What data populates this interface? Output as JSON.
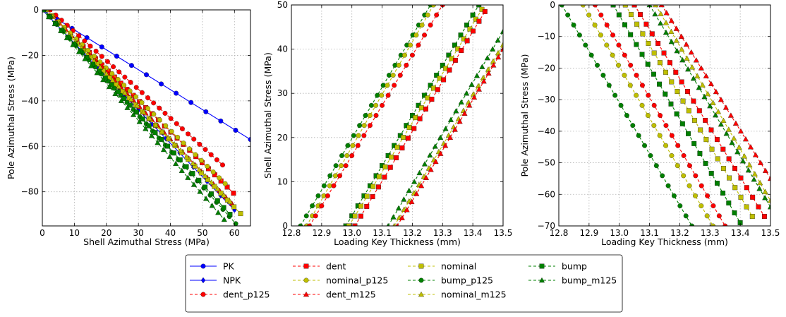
{
  "chart_data": [
    {
      "type": "line",
      "xlabel": "Shell Azimuthal Stress (MPa)",
      "ylabel": "Pole Azimuthal Stress (MPa)",
      "xlim": [
        0,
        65
      ],
      "ylim": [
        -95,
        0
      ],
      "xticks": [
        0,
        10,
        20,
        30,
        40,
        50,
        60
      ],
      "yticks": [
        0,
        -20,
        -40,
        -60,
        -80
      ],
      "grid": true,
      "series": [
        {
          "name": "PK",
          "x": [
            0,
            65
          ],
          "y": [
            0,
            -57
          ]
        },
        {
          "name": "NPK",
          "x": [
            0,
            60
          ],
          "y": [
            0,
            -88
          ]
        },
        {
          "name": "dent_p125",
          "x": [
            2.4,
            56.3
          ],
          "y": [
            0,
            -68.2
          ]
        },
        {
          "name": "dent",
          "x": [
            1,
            59.7
          ],
          "y": [
            0,
            -80.6
          ]
        },
        {
          "name": "dent_m125",
          "x": [
            1.5,
            59.2
          ],
          "y": [
            0,
            -85.1
          ]
        },
        {
          "name": "nominal_p125",
          "x": [
            1.3,
            57.1
          ],
          "y": [
            0,
            -76.4
          ]
        },
        {
          "name": "nominal",
          "x": [
            0.6,
            61.9
          ],
          "y": [
            0,
            -89.6
          ]
        },
        {
          "name": "nominal_m125",
          "x": [
            0.7,
            58.6
          ],
          "y": [
            0,
            -84.3
          ]
        },
        {
          "name": "bump_p125",
          "x": [
            0.5,
            60.4
          ],
          "y": [
            0,
            -94
          ]
        },
        {
          "name": "bump",
          "x": [
            0.2,
            58.6
          ],
          "y": [
            0,
            -89.9
          ]
        },
        {
          "name": "bump_m125",
          "x": [
            0.1,
            56.8
          ],
          "y": [
            0,
            -92.2
          ]
        }
      ]
    },
    {
      "type": "line",
      "xlabel": "Loading Key Thickness (mm)",
      "ylabel": "Shell Azimuthal Stress (MPa)",
      "xlim": [
        12.8,
        13.5
      ],
      "ylim": [
        0,
        50
      ],
      "xticks": [
        12.8,
        12.9,
        13.0,
        13.1,
        13.2,
        13.3,
        13.4,
        13.5
      ],
      "yticks": [
        0,
        10,
        20,
        30,
        40,
        50
      ],
      "grid": true,
      "series": [
        {
          "name": "bump_p125",
          "x": [
            12.83,
            13.26
          ],
          "y": [
            0,
            50
          ]
        },
        {
          "name": "nominal_p125",
          "x": [
            12.85,
            13.27
          ],
          "y": [
            0,
            50
          ]
        },
        {
          "name": "dent_p125",
          "x": [
            12.86,
            13.3
          ],
          "y": [
            0,
            50
          ]
        },
        {
          "name": "bump",
          "x": [
            12.98,
            13.42
          ],
          "y": [
            0,
            50
          ]
        },
        {
          "name": "nominal",
          "x": [
            12.99,
            13.43
          ],
          "y": [
            0,
            49
          ]
        },
        {
          "name": "dent",
          "x": [
            13.01,
            13.44
          ],
          "y": [
            0,
            48.5
          ]
        },
        {
          "name": "bump_m125",
          "x": [
            13.12,
            13.5
          ],
          "y": [
            0,
            44
          ]
        },
        {
          "name": "nominal_m125",
          "x": [
            13.14,
            13.5
          ],
          "y": [
            0,
            41
          ]
        },
        {
          "name": "dent_m125",
          "x": [
            13.15,
            13.5
          ],
          "y": [
            0,
            40
          ]
        }
      ]
    },
    {
      "type": "line",
      "xlabel": "Loading Key Thickness (mm)",
      "ylabel": "Pole Azimuthal Stress (MPa)",
      "xlim": [
        12.8,
        13.5
      ],
      "ylim": [
        -70,
        0
      ],
      "xticks": [
        12.8,
        12.9,
        13.0,
        13.1,
        13.2,
        13.3,
        13.4,
        13.5
      ],
      "yticks": [
        0,
        -10,
        -20,
        -30,
        -40,
        -50,
        -60,
        -70
      ],
      "grid": true,
      "series": [
        {
          "name": "bump_p125",
          "x": [
            12.81,
            13.24
          ],
          "y": [
            0,
            -70
          ]
        },
        {
          "name": "nominal_p125",
          "x": [
            12.88,
            13.31
          ],
          "y": [
            0,
            -70
          ]
        },
        {
          "name": "dent_p125",
          "x": [
            12.92,
            13.35
          ],
          "y": [
            0,
            -70
          ]
        },
        {
          "name": "bump",
          "x": [
            12.98,
            13.4
          ],
          "y": [
            0,
            -69
          ]
        },
        {
          "name": "nominal",
          "x": [
            13.02,
            13.44
          ],
          "y": [
            0,
            -67
          ]
        },
        {
          "name": "dent",
          "x": [
            13.05,
            13.48
          ],
          "y": [
            0,
            -67
          ]
        },
        {
          "name": "bump_m125",
          "x": [
            13.1,
            13.5
          ],
          "y": [
            0,
            -64
          ]
        },
        {
          "name": "nominal_m125",
          "x": [
            13.12,
            13.5
          ],
          "y": [
            0,
            -62
          ]
        },
        {
          "name": "dent_m125",
          "x": [
            13.14,
            13.5
          ],
          "y": [
            0,
            -55
          ]
        }
      ]
    }
  ],
  "styles": {
    "PK": {
      "color": "#0000ff",
      "marker": "circle",
      "dash": false
    },
    "NPK": {
      "color": "#0000ff",
      "marker": "diamond",
      "dash": false
    },
    "dent_p125": {
      "color": "#ff0000",
      "marker": "circle",
      "dash": true
    },
    "dent": {
      "color": "#ff0000",
      "marker": "square",
      "dash": true
    },
    "dent_m125": {
      "color": "#ff0000",
      "marker": "triangle",
      "dash": true
    },
    "nominal_p125": {
      "color": "#bfbf00",
      "marker": "circle",
      "dash": true
    },
    "nominal": {
      "color": "#bfbf00",
      "marker": "square",
      "dash": true
    },
    "nominal_m125": {
      "color": "#bfbf00",
      "marker": "triangle",
      "dash": true
    },
    "bump_p125": {
      "color": "#008000",
      "marker": "circle",
      "dash": true
    },
    "bump": {
      "color": "#008000",
      "marker": "square",
      "dash": true
    },
    "bump_m125": {
      "color": "#008000",
      "marker": "triangle",
      "dash": true
    }
  },
  "legend": {
    "placement": "bottom-center",
    "columns": [
      [
        "PK",
        "NPK",
        "dent_p125"
      ],
      [
        "dent",
        "nominal_p125",
        "dent_m125"
      ],
      [
        "nominal",
        "bump_p125",
        "nominal_m125"
      ],
      [
        "bump",
        "bump_m125"
      ]
    ]
  }
}
